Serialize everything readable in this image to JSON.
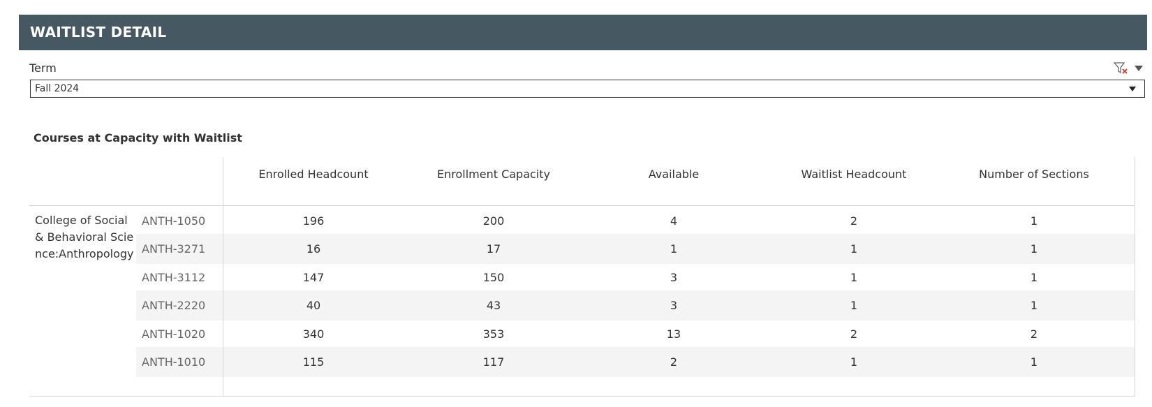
{
  "header": {
    "title": "WAITLIST DETAIL"
  },
  "filter": {
    "label": "Term",
    "selected": "Fall 2024",
    "clear_icon": "clear-filter-icon",
    "menu_icon": "caret-down-icon"
  },
  "table": {
    "title": "Courses at Capacity with Waitlist",
    "college": "College of Social & Behavioral Science:Anthropology",
    "columns": [
      "Enrolled Headcount",
      "Enrollment Capacity",
      "Available",
      "Waitlist Headcount",
      "Number of Sections"
    ],
    "rows": [
      {
        "course": "ANTH-1050",
        "values": [
          "196",
          "200",
          "4",
          "2",
          "1"
        ]
      },
      {
        "course": "ANTH-3271",
        "values": [
          "16",
          "17",
          "1",
          "1",
          "1"
        ]
      },
      {
        "course": "ANTH-3112",
        "values": [
          "147",
          "150",
          "3",
          "1",
          "1"
        ]
      },
      {
        "course": "ANTH-2220",
        "values": [
          "40",
          "43",
          "3",
          "1",
          "1"
        ]
      },
      {
        "course": "ANTH-1020",
        "values": [
          "340",
          "353",
          "13",
          "2",
          "2"
        ]
      },
      {
        "course": "ANTH-1010",
        "values": [
          "115",
          "117",
          "2",
          "1",
          "1"
        ]
      }
    ]
  },
  "colors": {
    "header_bg": "#465962",
    "stripe": "#f4f4f4",
    "clear_x": "#d93025"
  }
}
